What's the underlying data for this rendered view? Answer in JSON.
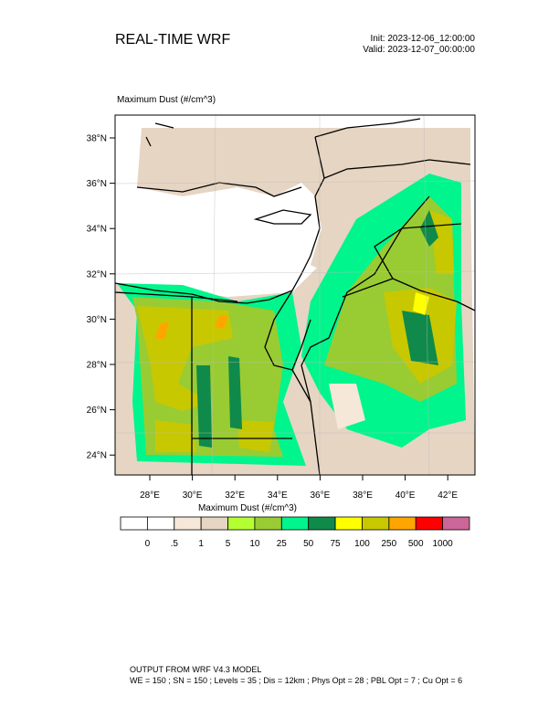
{
  "header": {
    "title": "REAL-TIME WRF",
    "init": "Init: 2023-12-06_12:00:00",
    "valid": "Valid: 2023-12-07_00:00:00"
  },
  "map": {
    "title": "Maximum Dust   (#/cm^3)",
    "lat_labels": [
      "38°N",
      "36°N",
      "34°N",
      "32°N",
      "30°N",
      "28°N",
      "26°N",
      "24°N"
    ],
    "lon_labels": [
      "28°E",
      "30°E",
      "32°E",
      "34°E",
      "36°E",
      "38°E",
      "40°E",
      "42°E"
    ]
  },
  "colorbar": {
    "title": "Maximum Dust  (#/cm^3)",
    "colors": [
      "#ffffff",
      "#ffffff",
      "#f5e8d8",
      "#e6d5c3",
      "#b4ff32",
      "#99cc33",
      "#00f58c",
      "#0f8a4a",
      "#ffff00",
      "#c8c800",
      "#ffa500",
      "#ff0000",
      "#cc6699"
    ],
    "labels": [
      "0",
      ".5",
      "1",
      "5",
      "10",
      "25",
      "50",
      "75",
      "100",
      "250",
      "500",
      "1000"
    ]
  },
  "footer": {
    "line1": "OUTPUT FROM WRF V4.3 MODEL",
    "line2": "WE = 150 ; SN = 150 ; Levels = 35 ; Dis = 12km ; Phys Opt = 28 ; PBL Opt = 7 ; Cu Opt = 6"
  }
}
